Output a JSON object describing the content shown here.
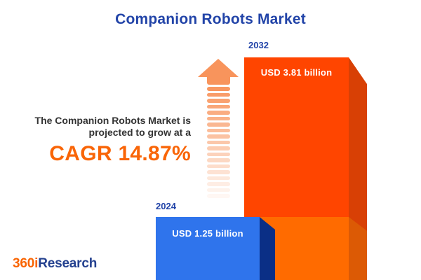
{
  "title": "Companion Robots Market",
  "description": {
    "line1": "The Companion Robots Market is",
    "line2": "projected to grow at a",
    "cagr": "CAGR 14.87%"
  },
  "chart_data": {
    "type": "bar",
    "title": "Companion Robots Market",
    "categories": [
      "2024",
      "2032"
    ],
    "values": [
      1.25,
      3.81
    ],
    "unit": "USD billion",
    "value_labels": [
      "USD 1.25 billion",
      "USD 3.81 billion"
    ],
    "cagr_percent": 14.87,
    "annotation": "The Companion Robots Market is projected to grow at a CAGR 14.87%",
    "legend": "none",
    "grid": false
  },
  "logo": {
    "prefix": "360i",
    "suffix": "Research"
  },
  "arrow": {
    "stripe_count": 19
  },
  "colors": {
    "title_blue": "#2244A8",
    "accent_orange": "#F96507",
    "bar_2032_face": "#FF4500",
    "bar_2032_face_lower": "#FF6B00",
    "bar_2032_side": "#D84005",
    "bar_2032_side_lower": "#DC5A05",
    "bar_2024_face": "#2F74EC",
    "bar_2024_side": "#0A2F86",
    "arrow_orange": "#F8945C",
    "text_dark": "#333333",
    "value_text": "#FFFFFF"
  }
}
